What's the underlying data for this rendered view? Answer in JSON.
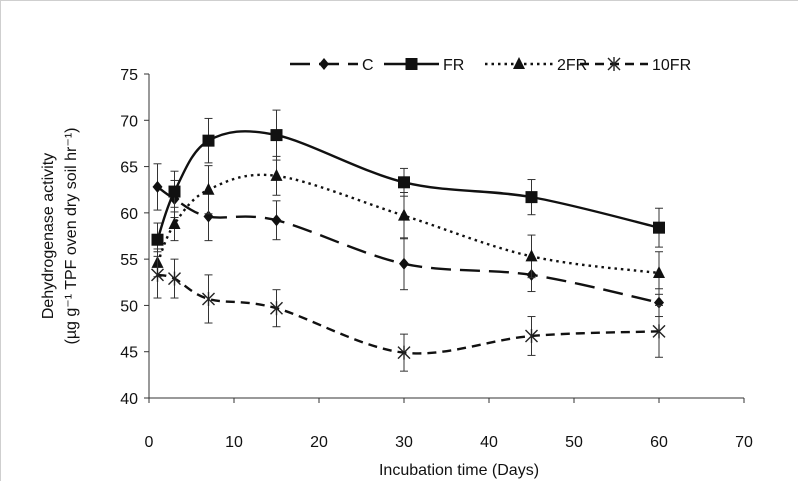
{
  "chart_data": {
    "type": "line",
    "xlabel": "Incubation time (Days)",
    "ylabel_line1": "Dehydrogenase activity",
    "ylabel_line2": "(µg g⁻¹ TPF oven dry soil hr⁻¹)",
    "xlim": [
      0,
      70
    ],
    "ylim": [
      40,
      75
    ],
    "xticks": [
      0,
      10,
      20,
      30,
      40,
      50,
      60,
      70
    ],
    "yticks": [
      40,
      45,
      50,
      55,
      60,
      65,
      70,
      75
    ],
    "grid": false,
    "legend_position": "top",
    "x": [
      1,
      3,
      7,
      15,
      30,
      45,
      60
    ],
    "series": [
      {
        "name": "C",
        "marker": "diamond",
        "dash": "long-dash",
        "values": [
          62.8,
          61.5,
          59.6,
          59.2,
          54.5,
          53.3,
          50.3
        ],
        "errors": [
          2.5,
          2.0,
          2.6,
          2.1,
          2.8,
          1.8,
          1.5
        ]
      },
      {
        "name": "FR",
        "marker": "square",
        "dash": "solid",
        "values": [
          57.1,
          62.3,
          67.8,
          68.4,
          63.3,
          61.7,
          58.4
        ],
        "errors": [
          1.8,
          2.2,
          2.4,
          2.7,
          1.5,
          1.9,
          2.1
        ]
      },
      {
        "name": "2FR",
        "marker": "triangle",
        "dash": "dotted",
        "values": [
          54.6,
          58.8,
          62.5,
          64.0,
          59.7,
          55.3,
          53.5
        ],
        "errors": [
          1.5,
          1.8,
          2.6,
          2.1,
          2.5,
          2.3,
          2.3
        ]
      },
      {
        "name": "10FR",
        "marker": "star",
        "dash": "short-dash",
        "values": [
          53.3,
          52.9,
          50.7,
          49.7,
          44.9,
          46.7,
          47.2
        ],
        "errors": [
          2.5,
          2.1,
          2.6,
          2.0,
          2.0,
          2.1,
          2.8
        ]
      }
    ]
  }
}
